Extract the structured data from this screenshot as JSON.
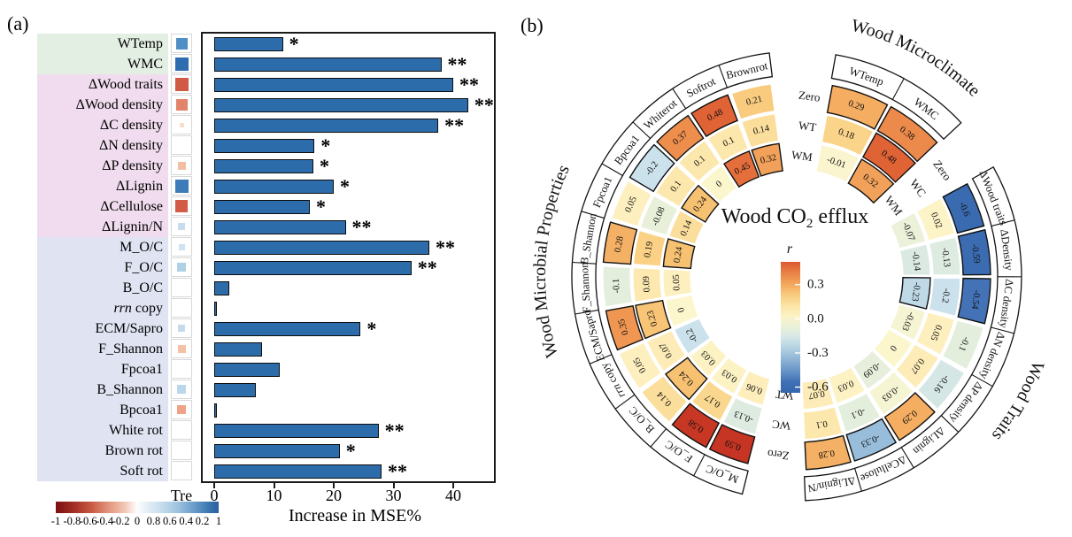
{
  "panel_a_tag": "(a)",
  "panel_b_tag": "(b)",
  "chart_data": [
    {
      "type": "bar",
      "panel": "a",
      "orientation": "horizontal",
      "title": "",
      "xlabel": "Increase in MSE%",
      "x_ticks": [
        0,
        10,
        20,
        30,
        40
      ],
      "x_max": 47,
      "tre_header": "Tre",
      "bar_color": "#2d6cab",
      "group_colors": [
        "#e4efe3",
        "#f0dcee",
        "#dfe3f2"
      ],
      "legend_tick_labels": [
        "-1",
        "-0.8",
        "-0.6",
        "-0.4",
        "-0.2",
        "0",
        "0.8",
        "0.6",
        "0.4",
        "0.2",
        "1"
      ],
      "rows": [
        {
          "label": "WTemp",
          "group": 0,
          "value": 11.5,
          "sig": "*",
          "tre_color": "#4f8fc4",
          "tre_size": 0.72
        },
        {
          "label": "WMC",
          "group": 0,
          "value": 38.0,
          "sig": "**",
          "tre_color": "#2f6db1",
          "tre_size": 0.84
        },
        {
          "label": "ΔWood traits",
          "group": 1,
          "value": 40.0,
          "sig": "**",
          "tre_color": "#d05a44",
          "tre_size": 0.84
        },
        {
          "label": "ΔWood density",
          "group": 1,
          "value": 42.5,
          "sig": "**",
          "tre_color": "#e2836b",
          "tre_size": 0.72
        },
        {
          "label": "ΔC density",
          "group": 1,
          "value": 37.5,
          "sig": "**",
          "tre_color": "#f9ddd0",
          "tre_size": 0.3
        },
        {
          "label": "ΔN density",
          "group": 1,
          "value": 16.8,
          "sig": "*",
          "tre_color": "#ffffff",
          "tre_size": 0
        },
        {
          "label": "ΔP density",
          "group": 1,
          "value": 16.6,
          "sig": "*",
          "tre_color": "#f3bfa4",
          "tre_size": 0.5
        },
        {
          "label": "ΔLignin",
          "group": 1,
          "value": 20.0,
          "sig": "*",
          "tre_color": "#3c7cb8",
          "tre_size": 0.84
        },
        {
          "label": "ΔCellulose",
          "group": 1,
          "value": 16.0,
          "sig": "*",
          "tre_color": "#d25c46",
          "tre_size": 0.8
        },
        {
          "label": "ΔLignin/N",
          "group": 1,
          "value": 22.0,
          "sig": "**",
          "tre_color": "#c7dded",
          "tre_size": 0.45
        },
        {
          "label": "M_O/C",
          "group": 2,
          "value": 36.0,
          "sig": "**",
          "tre_color": "#cfe2f0",
          "tre_size": 0.4
        },
        {
          "label": "F_O/C",
          "group": 2,
          "value": 33.0,
          "sig": "**",
          "tre_color": "#afd0e5",
          "tre_size": 0.58
        },
        {
          "label": "B_O/C",
          "group": 2,
          "value": 2.5,
          "sig": "",
          "tre_color": "#ffffff",
          "tre_size": 0
        },
        {
          "label": "rrn copy",
          "italic_prefix": 3,
          "group": 2,
          "value": 0.4,
          "sig": "",
          "tre_color": "#ffffff",
          "tre_size": 0
        },
        {
          "label": "ECM/Sapro",
          "group": 2,
          "value": 24.5,
          "sig": "*",
          "tre_color": "#c4dbed",
          "tre_size": 0.45
        },
        {
          "label": "F_Shannon",
          "group": 2,
          "value": 8.0,
          "sig": "",
          "tre_color": "#f4c0a6",
          "tre_size": 0.5
        },
        {
          "label": "Fpcoa1",
          "group": 2,
          "value": 11.0,
          "sig": "",
          "tre_color": "#ffffff",
          "tre_size": 0
        },
        {
          "label": "B_Shannon",
          "group": 2,
          "value": 7.0,
          "sig": "",
          "tre_color": "#bcd7ea",
          "tre_size": 0.55
        },
        {
          "label": "Bpcoa1",
          "group": 2,
          "value": 0.4,
          "sig": "",
          "tre_color": "#efa285",
          "tre_size": 0.55
        },
        {
          "label": "White rot",
          "group": 2,
          "value": 27.5,
          "sig": "**",
          "tre_color": "#ffffff",
          "tre_size": 0
        },
        {
          "label": "Brown rot",
          "group": 2,
          "value": 21.0,
          "sig": "*",
          "tre_color": "#ffffff",
          "tre_size": 0
        },
        {
          "label": "Soft rot",
          "group": 2,
          "value": 28.0,
          "sig": "**",
          "tre_color": "#ffffff",
          "tre_size": 0
        }
      ]
    },
    {
      "type": "heatmap",
      "panel": "b",
      "shape": "circular",
      "center_title_parts": {
        "pre": "Wood  CO",
        "sub": "2",
        "post": " efflux"
      },
      "legend_title": "r",
      "legend_ticks": [
        "0.3",
        "0.0",
        "-0.3",
        "-0.6"
      ],
      "legend_tick_values": [
        0.3,
        0.0,
        -0.3,
        -0.6
      ],
      "rings_order": "outer to inner",
      "ring_gap_labels": {
        "top": [
          "Zero",
          "WT",
          "WM"
        ],
        "right": [
          "Zero",
          "WC",
          "WM"
        ],
        "bottom": [
          "Zero",
          "WC",
          "WT"
        ]
      },
      "colormap": [
        [
          -0.7,
          "#3161a8"
        ],
        [
          -0.55,
          "#3f6fb4"
        ],
        [
          -0.45,
          "#6b97c9"
        ],
        [
          -0.3,
          "#a3c6de"
        ],
        [
          -0.2,
          "#cbe1eb"
        ],
        [
          -0.12,
          "#dfecdf"
        ],
        [
          -0.06,
          "#eef2d8"
        ],
        [
          0.0,
          "#fcf6cd"
        ],
        [
          0.06,
          "#fdeebb"
        ],
        [
          0.12,
          "#fce3a4"
        ],
        [
          0.18,
          "#fad489"
        ],
        [
          0.24,
          "#f7c172"
        ],
        [
          0.3,
          "#f3a95e"
        ],
        [
          0.38,
          "#ec8a4b"
        ],
        [
          0.48,
          "#e06335"
        ],
        [
          0.55,
          "#cd3e27"
        ],
        [
          0.62,
          "#c02d20"
        ]
      ],
      "groups": [
        {
          "name": "Wood Microclimate",
          "sectors": [
            {
              "label": "WTemp",
              "values": [
                "0.29",
                "0.18",
                "-0.01"
              ],
              "sig": [
                true,
                false,
                false
              ]
            },
            {
              "label": "WMC",
              "values": [
                "0.38",
                "0.48",
                "0.32"
              ],
              "sig": [
                true,
                true,
                true
              ]
            }
          ]
        },
        {
          "name": "Wood Traits",
          "sectors": [
            {
              "label": "ΔWood traits",
              "values": [
                "-0.6",
                "0.02",
                "-0.07"
              ],
              "sig": [
                true,
                false,
                false
              ]
            },
            {
              "label": "ΔDensity",
              "values": [
                "-0.59",
                "-0.13",
                "-0.14"
              ],
              "sig": [
                true,
                false,
                false
              ]
            },
            {
              "label": "ΔC density",
              "values": [
                "-0.54",
                "-0.2",
                "-0.23"
              ],
              "sig": [
                true,
                false,
                true
              ]
            },
            {
              "label": "ΔN density",
              "values": [
                "-0.1",
                "0.05",
                "-0.03"
              ],
              "sig": [
                false,
                false,
                false
              ]
            },
            {
              "label": "ΔP density",
              "values": [
                "-0.16",
                "0.07",
                "0"
              ],
              "sig": [
                false,
                false,
                false
              ]
            },
            {
              "label": "ΔLignin",
              "values": [
                "0.29",
                "-0.03",
                "-0.09"
              ],
              "sig": [
                true,
                false,
                false
              ]
            },
            {
              "label": "ΔCellulose",
              "values": [
                "-0.33",
                "-0.1",
                "0.03"
              ],
              "sig": [
                true,
                false,
                false
              ]
            },
            {
              "label": "ΔLignin/N",
              "values": [
                "0.28",
                "0.1",
                "0.07"
              ],
              "sig": [
                true,
                false,
                false
              ]
            }
          ]
        },
        {
          "name": "Wood Microbial Properties",
          "sectors": [
            {
              "label": "M_O/C",
              "values": [
                "0.59",
                "-0.13",
                "0.06"
              ],
              "sig": [
                true,
                false,
                false
              ]
            },
            {
              "label": "F_O/C",
              "values": [
                "0.58",
                "0.17",
                "0.03"
              ],
              "sig": [
                true,
                false,
                false
              ]
            },
            {
              "label": "B_O/C",
              "values": [
                "0.14",
                "0.24",
                "0.03"
              ],
              "sig": [
                false,
                true,
                false
              ]
            },
            {
              "label": "rrn copy",
              "italic_prefix": 3,
              "values": [
                "0.05",
                "0.07",
                "-0.2"
              ],
              "sig": [
                false,
                false,
                false
              ]
            },
            {
              "label": "ECM/Sapro",
              "values": [
                "0.35",
                "0.23",
                "0"
              ],
              "sig": [
                true,
                true,
                false
              ]
            },
            {
              "label": "F_Shannon",
              "values": [
                "-0.1",
                "0.09",
                "0.05"
              ],
              "sig": [
                false,
                false,
                false
              ]
            },
            {
              "label": "B_Shannon",
              "values": [
                "0.28",
                "0.19",
                "0.24"
              ],
              "sig": [
                true,
                false,
                true
              ]
            },
            {
              "label": "Fpcoa1",
              "values": [
                "0.05",
                "-0.08",
                "0.14"
              ],
              "sig": [
                false,
                false,
                false
              ]
            },
            {
              "label": "Bpcoa1",
              "values": [
                "-0.2",
                "0.1",
                "0.24"
              ],
              "sig": [
                true,
                false,
                true
              ]
            },
            {
              "label": "Whiterot",
              "values": [
                "0.37",
                "0.1",
                "0"
              ],
              "sig": [
                true,
                false,
                false
              ]
            },
            {
              "label": "Softrot",
              "values": [
                "0.48",
                "0.1",
                "0.45"
              ],
              "sig": [
                true,
                false,
                true
              ]
            },
            {
              "label": "Brownrot",
              "values": [
                "0.21",
                "0.14",
                "0.32"
              ],
              "sig": [
                false,
                false,
                true
              ]
            }
          ]
        }
      ]
    }
  ]
}
